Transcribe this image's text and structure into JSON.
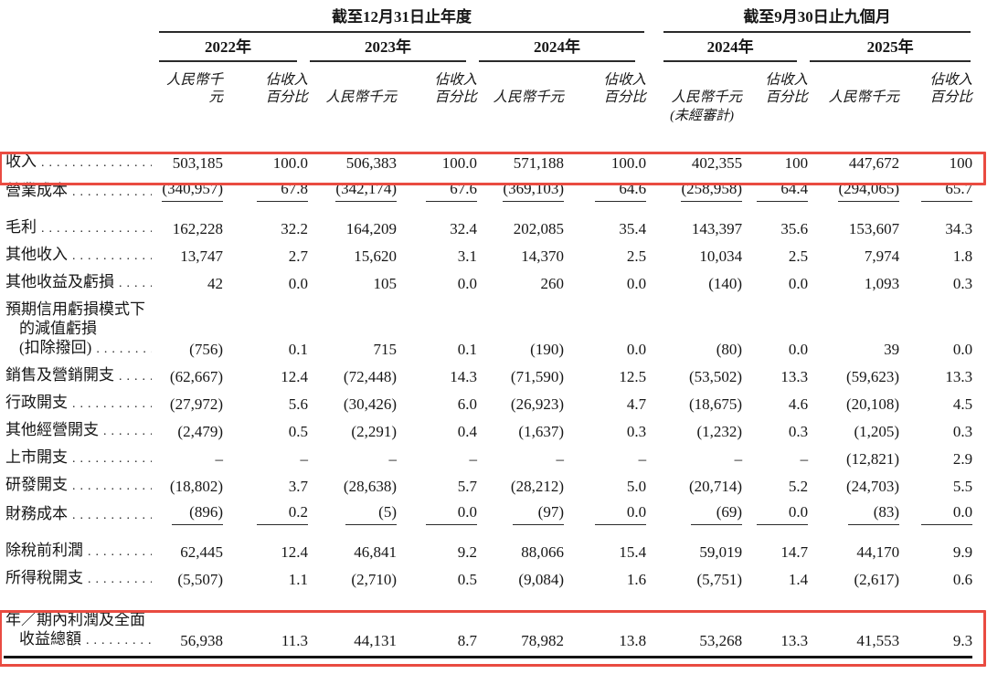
{
  "colors": {
    "highlight_box": "#e94b41",
    "rule": "#2a2a2a",
    "text": "#161616"
  },
  "table": {
    "period_groups": [
      {
        "label": "截至12月31日止年度"
      },
      {
        "label": "截至9月30日止九個月"
      }
    ],
    "year_headers": [
      "2022年",
      "2023年",
      "2024年",
      "2024年",
      "2025年"
    ],
    "unit_label": "人民幣千元",
    "pct_label_lines": [
      "佔收入",
      "百分比"
    ],
    "unaudited_note": "(未經審計)",
    "rows": [
      {
        "label_lines": [
          "收入"
        ],
        "bold": true,
        "highlight": true,
        "values": [
          "503,185",
          "100.0",
          "506,383",
          "100.0",
          "571,188",
          "100.0",
          "402,355",
          "100",
          "447,672",
          "100"
        ]
      },
      {
        "label_lines": [
          "營業成本"
        ],
        "rule_below": true,
        "values": [
          "(340,957)",
          "67.8",
          "(342,174)",
          "67.6",
          "(369,103)",
          "64.6",
          "(258,958)",
          "64.4",
          "(294,065)",
          "65.7"
        ]
      },
      {
        "label_lines": [
          "毛利"
        ],
        "bold": true,
        "gap_above": true,
        "values": [
          "162,228",
          "32.2",
          "164,209",
          "32.4",
          "202,085",
          "35.4",
          "143,397",
          "35.6",
          "153,607",
          "34.3"
        ]
      },
      {
        "label_lines": [
          "其他收入"
        ],
        "values": [
          "13,747",
          "2.7",
          "15,620",
          "3.1",
          "14,370",
          "2.5",
          "10,034",
          "2.5",
          "7,974",
          "1.8"
        ]
      },
      {
        "label_lines": [
          "其他收益及虧損"
        ],
        "values": [
          "42",
          "0.0",
          "105",
          "0.0",
          "260",
          "0.0",
          "(140)",
          "0.0",
          "1,093",
          "0.3"
        ]
      },
      {
        "label_lines": [
          "預期信用虧損模式下",
          "的減值虧損",
          "(扣除撥回)"
        ],
        "values": [
          "(756)",
          "0.1",
          "715",
          "0.1",
          "(190)",
          "0.0",
          "(80)",
          "0.0",
          "39",
          "0.0"
        ]
      },
      {
        "label_lines": [
          "銷售及營銷開支"
        ],
        "values": [
          "(62,667)",
          "12.4",
          "(72,448)",
          "14.3",
          "(71,590)",
          "12.5",
          "(53,502)",
          "13.3",
          "(59,623)",
          "13.3"
        ]
      },
      {
        "label_lines": [
          "行政開支"
        ],
        "values": [
          "(27,972)",
          "5.6",
          "(30,426)",
          "6.0",
          "(26,923)",
          "4.7",
          "(18,675)",
          "4.6",
          "(20,108)",
          "4.5"
        ]
      },
      {
        "label_lines": [
          "其他經營開支"
        ],
        "values": [
          "(2,479)",
          "0.5",
          "(2,291)",
          "0.4",
          "(1,637)",
          "0.3",
          "(1,232)",
          "0.3",
          "(1,205)",
          "0.3"
        ]
      },
      {
        "label_lines": [
          "上市開支"
        ],
        "values": [
          "–",
          "–",
          "–",
          "–",
          "–",
          "–",
          "–",
          "–",
          "(12,821)",
          "2.9"
        ]
      },
      {
        "label_lines": [
          "研發開支"
        ],
        "values": [
          "(18,802)",
          "3.7",
          "(28,638)",
          "5.7",
          "(28,212)",
          "5.0",
          "(20,714)",
          "5.2",
          "(24,703)",
          "5.5"
        ]
      },
      {
        "label_lines": [
          "財務成本"
        ],
        "rule_below": true,
        "values": [
          "(896)",
          "0.2",
          "(5)",
          "0.0",
          "(97)",
          "0.0",
          "(69)",
          "0.0",
          "(83)",
          "0.0"
        ]
      },
      {
        "label_lines": [
          "除稅前利潤"
        ],
        "bold": true,
        "gap_above": true,
        "values": [
          "62,445",
          "12.4",
          "46,841",
          "9.2",
          "88,066",
          "15.4",
          "59,019",
          "14.7",
          "44,170",
          "9.9"
        ]
      },
      {
        "label_lines": [
          "所得稅開支"
        ],
        "values": [
          "(5,507)",
          "1.1",
          "(2,710)",
          "0.5",
          "(9,084)",
          "1.6",
          "(5,751)",
          "1.4",
          "(2,617)",
          "0.6"
        ]
      },
      {
        "label_lines": [
          "年／期內利潤及全面",
          "收益總額"
        ],
        "bold": true,
        "highlight": true,
        "space_above": 16,
        "bottom_rule": true,
        "values": [
          "56,938",
          "11.3",
          "44,131",
          "8.7",
          "78,982",
          "13.8",
          "53,268",
          "13.3",
          "41,553",
          "9.3"
        ]
      }
    ]
  }
}
